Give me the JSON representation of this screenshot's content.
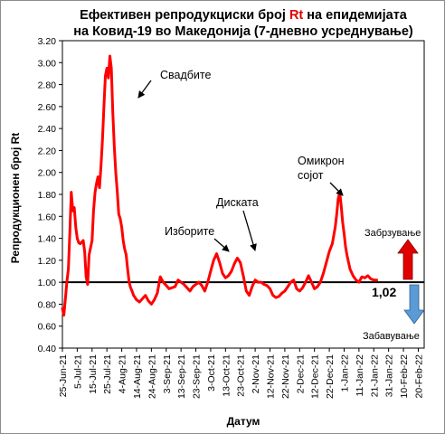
{
  "chart_data": {
    "type": "line",
    "title_line1_pre": "Ефективен репродукциски број ",
    "title_line1_red": "Rt",
    "title_line1_post": " на епидемијата",
    "title_line2": "на Ковид-19 во Македонија (7-дневно усреднување)",
    "xlabel": "Датум",
    "ylabel": "Репродукционен број Rt",
    "ylim": [
      0.4,
      3.2
    ],
    "y_ticks": [
      "0.40",
      "0.60",
      "0.80",
      "1.00",
      "1.20",
      "1.40",
      "1.60",
      "1.80",
      "2.00",
      "2.20",
      "2.40",
      "2.60",
      "2.80",
      "3.00",
      "3.20"
    ],
    "x_ticks": [
      "25-Jun-21",
      "5-Jul-21",
      "15-Jul-21",
      "25-Jul-21",
      "4-Aug-21",
      "14-Aug-21",
      "24-Aug-21",
      "3-Sep-21",
      "13-Sep-21",
      "23-Sep-21",
      "3-Oct-21",
      "13-Oct-21",
      "23-Oct-21",
      "2-Nov-21",
      "12-Nov-21",
      "22-Nov-21",
      "2-Dec-21",
      "12-Dec-21",
      "22-Dec-21",
      "1-Jan-22",
      "11-Jan-22",
      "21-Jan-22",
      "31-Jan-22",
      "10-Feb-22",
      "20-Feb-22"
    ],
    "x_start": "2021-06-25",
    "x_end": "2022-02-24",
    "reference_line": 1.0,
    "last_value_label": "1,02",
    "grid": false,
    "series": [
      {
        "color": "#ff0000",
        "x": [
          "2021-06-25",
          "2021-06-26",
          "2021-06-27",
          "2021-06-28",
          "2021-06-29",
          "2021-06-30",
          "2021-07-01",
          "2021-07-02",
          "2021-07-03",
          "2021-07-04",
          "2021-07-05",
          "2021-07-06",
          "2021-07-07",
          "2021-07-09",
          "2021-07-10",
          "2021-07-11",
          "2021-07-12",
          "2021-07-13",
          "2021-07-15",
          "2021-07-16",
          "2021-07-17",
          "2021-07-18",
          "2021-07-19",
          "2021-07-20",
          "2021-07-21",
          "2021-07-22",
          "2021-07-23",
          "2021-07-24",
          "2021-07-25",
          "2021-07-26",
          "2021-07-27",
          "2021-07-28",
          "2021-07-29",
          "2021-07-30",
          "2021-07-31",
          "2021-08-01",
          "2021-08-02",
          "2021-08-03",
          "2021-08-04",
          "2021-08-05",
          "2021-08-06",
          "2021-08-07",
          "2021-08-08",
          "2021-08-09",
          "2021-08-10",
          "2021-08-11",
          "2021-08-12",
          "2021-08-13",
          "2021-08-14",
          "2021-08-16",
          "2021-08-18",
          "2021-08-20",
          "2021-08-22",
          "2021-08-24",
          "2021-08-26",
          "2021-08-28",
          "2021-08-30",
          "2021-09-01",
          "2021-09-03",
          "2021-09-05",
          "2021-09-07",
          "2021-09-09",
          "2021-09-11",
          "2021-09-13",
          "2021-09-15",
          "2021-09-17",
          "2021-09-19",
          "2021-09-21",
          "2021-09-23",
          "2021-09-25",
          "2021-09-27",
          "2021-09-29",
          "2021-10-01",
          "2021-10-03",
          "2021-10-05",
          "2021-10-07",
          "2021-10-09",
          "2021-10-11",
          "2021-10-13",
          "2021-10-15",
          "2021-10-17",
          "2021-10-19",
          "2021-10-21",
          "2021-10-23",
          "2021-10-25",
          "2021-10-27",
          "2021-10-29",
          "2021-10-31",
          "2021-11-02",
          "2021-11-04",
          "2021-11-06",
          "2021-11-08",
          "2021-11-10",
          "2021-11-12",
          "2021-11-14",
          "2021-11-16",
          "2021-11-18",
          "2021-11-20",
          "2021-11-22",
          "2021-11-24",
          "2021-11-26",
          "2021-11-28",
          "2021-11-30",
          "2021-12-02",
          "2021-12-04",
          "2021-12-06",
          "2021-12-08",
          "2021-12-10",
          "2021-12-12",
          "2021-12-14",
          "2021-12-16",
          "2021-12-18",
          "2021-12-20",
          "2021-12-22",
          "2021-12-24",
          "2021-12-26",
          "2021-12-27",
          "2021-12-28",
          "2021-12-29",
          "2021-12-30",
          "2021-12-31",
          "2022-01-01",
          "2022-01-02",
          "2022-01-03",
          "2022-01-04",
          "2022-01-05",
          "2022-01-07",
          "2022-01-09",
          "2022-01-11",
          "2022-01-13",
          "2022-01-15",
          "2022-01-17",
          "2022-01-19",
          "2022-01-21",
          "2022-01-23"
        ],
        "y": [
          0.76,
          0.7,
          0.85,
          1.0,
          1.12,
          1.45,
          1.82,
          1.65,
          1.68,
          1.5,
          1.4,
          1.36,
          1.35,
          1.38,
          1.28,
          1.05,
          0.98,
          1.25,
          1.38,
          1.65,
          1.82,
          1.9,
          1.96,
          1.86,
          2.05,
          2.3,
          2.6,
          2.88,
          2.95,
          2.86,
          3.06,
          2.95,
          2.55,
          2.23,
          2.0,
          1.82,
          1.62,
          1.58,
          1.5,
          1.38,
          1.3,
          1.25,
          1.12,
          1.0,
          0.95,
          0.92,
          0.88,
          0.86,
          0.84,
          0.82,
          0.85,
          0.88,
          0.83,
          0.8,
          0.84,
          0.9,
          1.05,
          1.0,
          0.97,
          0.94,
          0.95,
          0.96,
          1.02,
          1.0,
          0.98,
          0.95,
          0.92,
          0.96,
          0.98,
          1.0,
          0.97,
          0.92,
          1.0,
          1.1,
          1.2,
          1.26,
          1.18,
          1.08,
          1.04,
          1.06,
          1.1,
          1.17,
          1.22,
          1.18,
          1.06,
          0.92,
          0.88,
          0.96,
          1.02,
          1.0,
          1.0,
          0.98,
          0.97,
          0.94,
          0.88,
          0.86,
          0.87,
          0.9,
          0.92,
          0.96,
          1.0,
          1.02,
          0.94,
          0.92,
          0.95,
          1.0,
          1.06,
          1.0,
          0.94,
          0.96,
          1.0,
          1.08,
          1.18,
          1.28,
          1.35,
          1.5,
          1.62,
          1.76,
          1.82,
          1.7,
          1.55,
          1.44,
          1.32,
          1.24,
          1.18,
          1.12,
          1.06,
          1.02,
          1.0,
          1.05,
          1.04,
          1.06,
          1.03,
          1.02,
          1.02
        ]
      }
    ],
    "annotations": [
      {
        "text": "Свадбите"
      },
      {
        "text": "Изборите"
      },
      {
        "text": "Диската"
      },
      {
        "text_line1": "Омикрон",
        "text_line2": "соjот"
      }
    ],
    "arrow_up_label": "Забрзување",
    "arrow_down_label": "Забавување"
  }
}
